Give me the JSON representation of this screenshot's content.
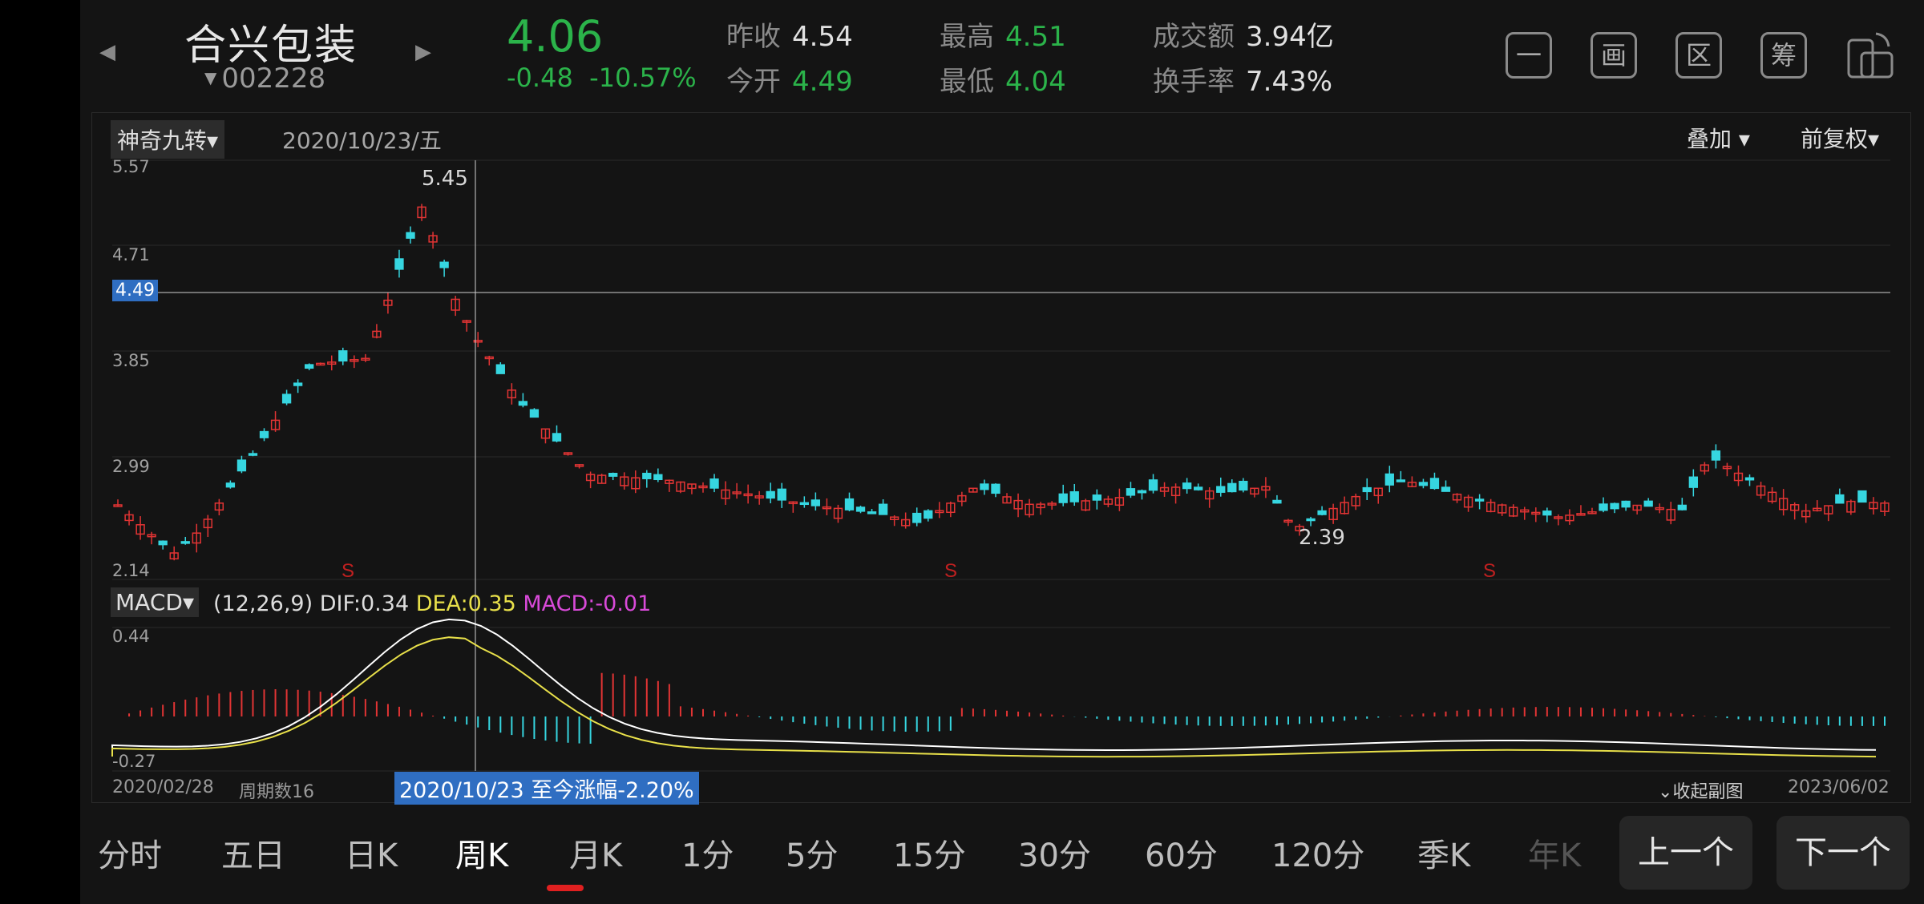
{
  "header": {
    "name": "合兴包装",
    "code": "002228",
    "price": "4.06",
    "change": "-0.48",
    "change_pct": "-10.57%",
    "prev_close_label": "昨收",
    "prev_close": "4.54",
    "open_label": "今开",
    "open": "4.49",
    "high_label": "最高",
    "high": "4.51",
    "low_label": "最低",
    "low": "4.04",
    "turnover_label": "成交额",
    "turnover": "3.94亿",
    "turnover_rate_label": "换手率",
    "turnover_rate": "7.43%",
    "tools": [
      "一",
      "画",
      "区",
      "筹"
    ]
  },
  "chart": {
    "indicator": "神奇九转",
    "crosshair_date": "2020/10/23/五",
    "overlay_label": "叠加",
    "adjust_label": "前复权",
    "y_ticks": [
      "5.57",
      "4.71",
      "3.85",
      "2.99",
      "2.14"
    ],
    "crosshair_value": "4.49",
    "high_label": "5.45",
    "low_label": "2.39",
    "macd_name": "MACD",
    "macd_params": "(12,26,9)",
    "dif": "DIF:0.34",
    "dea": "DEA:0.35",
    "macd": "MACD:-0.01",
    "macd_top": "0.44",
    "macd_bottom": "-0.27",
    "start_date": "2020/02/28",
    "end_date": "2023/06/02",
    "period_count": "周期数16",
    "range_text": "2020/10/23 至今涨幅-2.20%",
    "collapse_label": "收起副图"
  },
  "tabs": [
    "分时",
    "五日",
    "日K",
    "周K",
    "月K",
    "1分",
    "5分",
    "15分",
    "30分",
    "60分",
    "120分",
    "季K",
    "年K"
  ],
  "active_tab": "周K",
  "pager": {
    "prev": "上一个",
    "next": "下一个"
  },
  "colors": {
    "up": "#e23434",
    "down": "#36d6e0",
    "gain": "#2bb34a",
    "dea": "#e8e04a",
    "macd": "#d94ad9"
  }
}
